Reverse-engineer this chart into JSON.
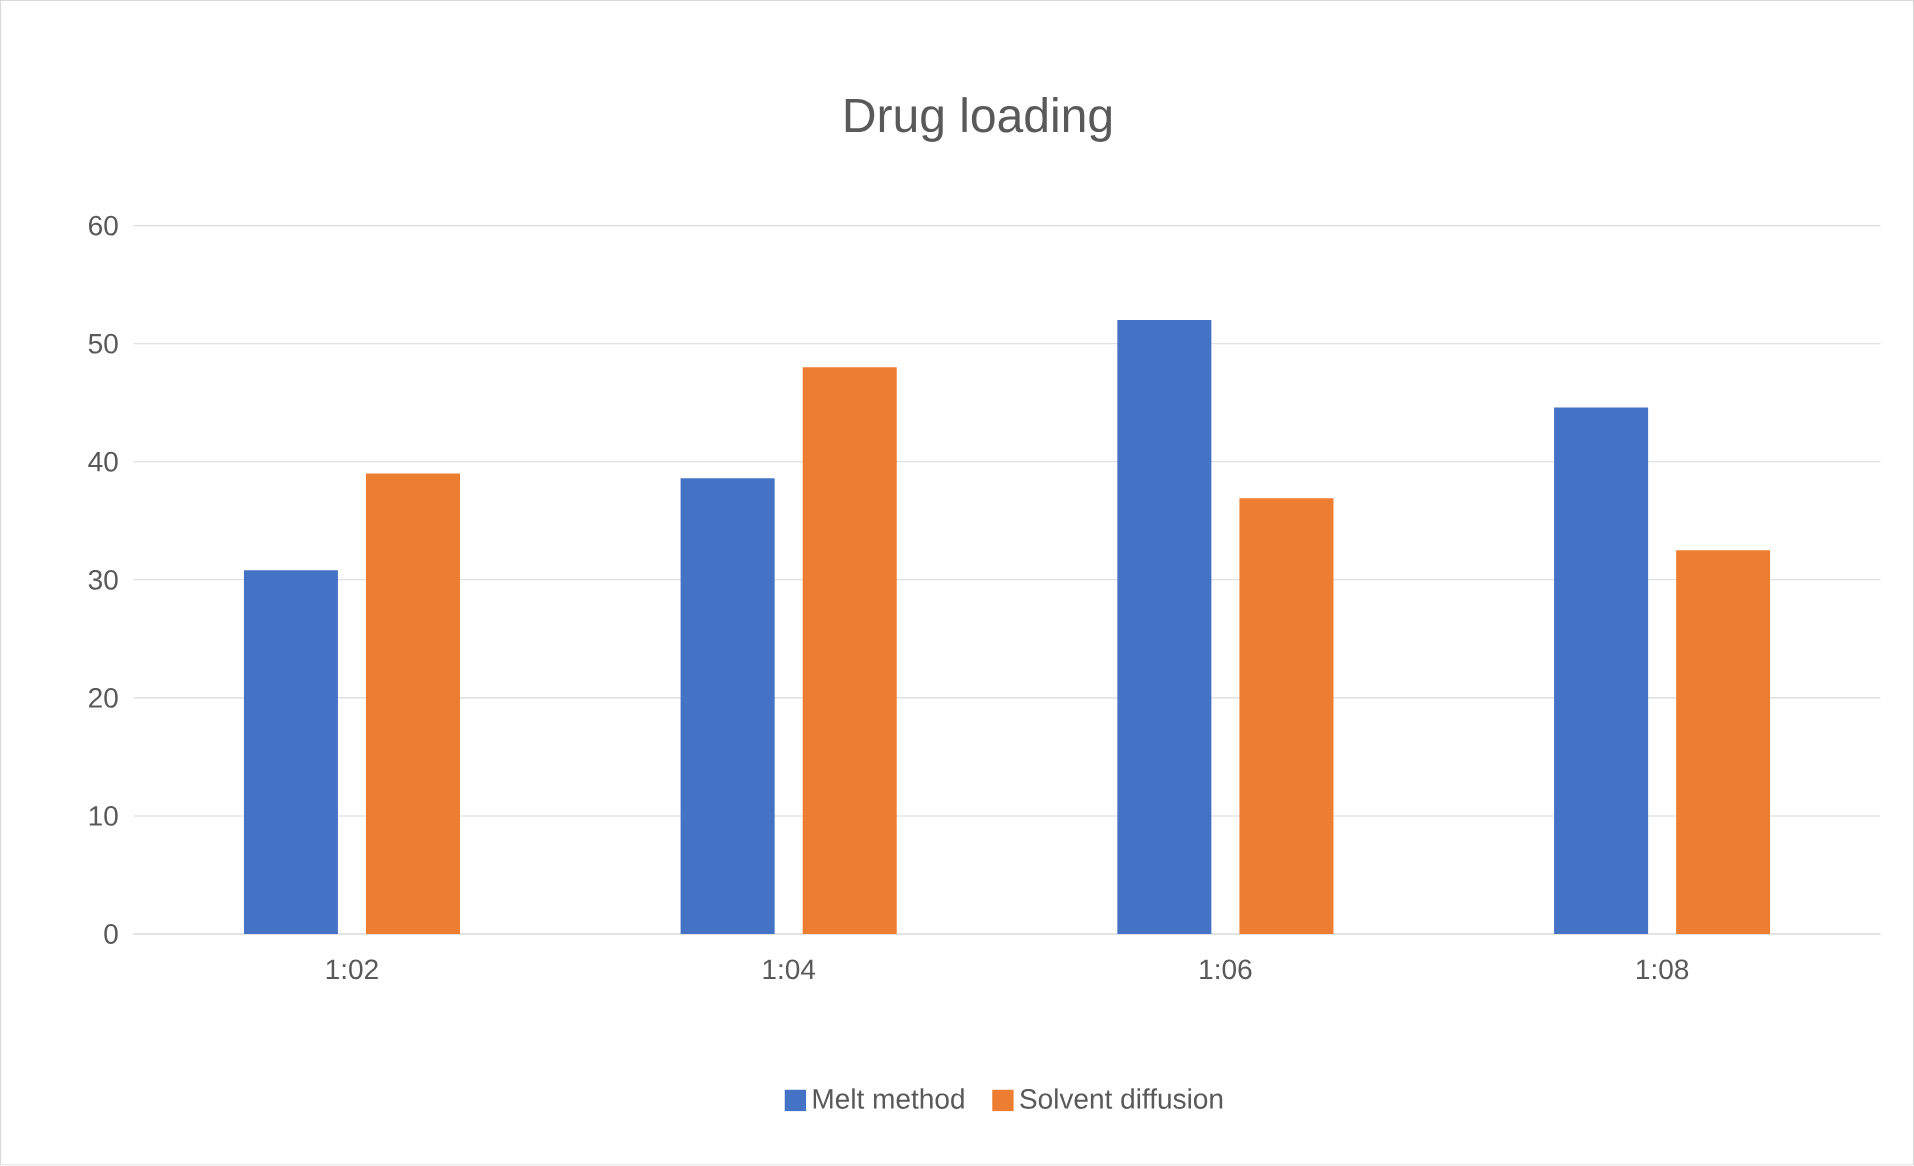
{
  "chart_data": {
    "type": "bar",
    "title": "Drug loading",
    "categories": [
      "1:02",
      "1:04",
      "1:06",
      "1:08"
    ],
    "series": [
      {
        "name": "Melt method",
        "color": "#4472c4",
        "values": [
          30.8,
          38.6,
          52.0,
          44.6
        ]
      },
      {
        "name": "Solvent diffusion",
        "color": "#ed7d31",
        "values": [
          39.0,
          48.0,
          36.9,
          32.5
        ]
      }
    ],
    "ylim": [
      0,
      60
    ],
    "yticks": [
      0,
      10,
      20,
      30,
      40,
      50,
      60
    ],
    "grid": "y",
    "legend": "bottom"
  }
}
